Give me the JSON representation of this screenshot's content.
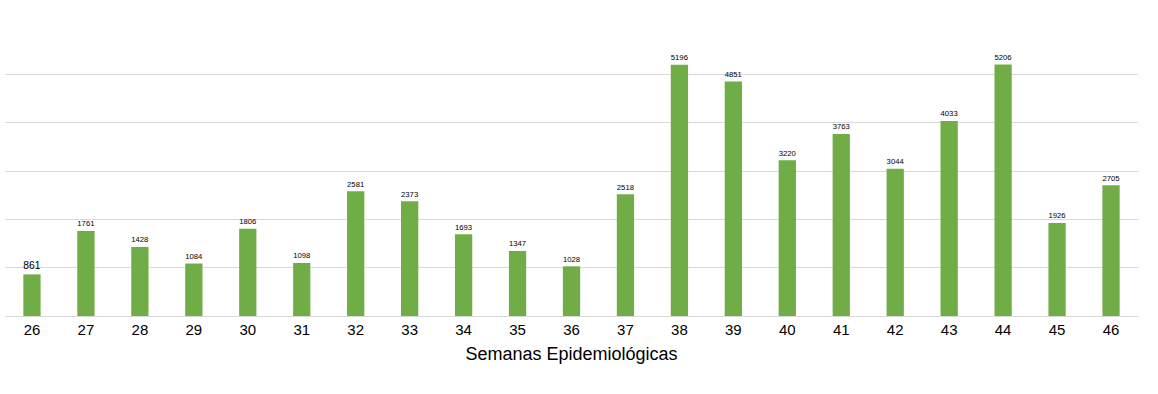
{
  "chart_data": {
    "type": "bar",
    "x_label": "Semanas Epidemiológicas",
    "categories": [
      "26",
      "27",
      "28",
      "29",
      "30",
      "31",
      "32",
      "33",
      "34",
      "35",
      "36",
      "37",
      "38",
      "39",
      "40",
      "41",
      "42",
      "43",
      "44",
      "45",
      "46"
    ],
    "values": [
      861,
      1761,
      1428,
      1084,
      1806,
      1098,
      2581,
      2373,
      1693,
      1347,
      1028,
      2518,
      5196,
      4851,
      3220,
      3763,
      3044,
      4033,
      5206,
      1926,
      2705
    ],
    "color": "#70ad47",
    "ylim": [
      0,
      6000
    ],
    "yticks": [
      0,
      1000,
      2000,
      3000,
      4000,
      5000,
      6000
    ],
    "grid": true,
    "data_labels": true,
    "tick_labels": "x"
  }
}
